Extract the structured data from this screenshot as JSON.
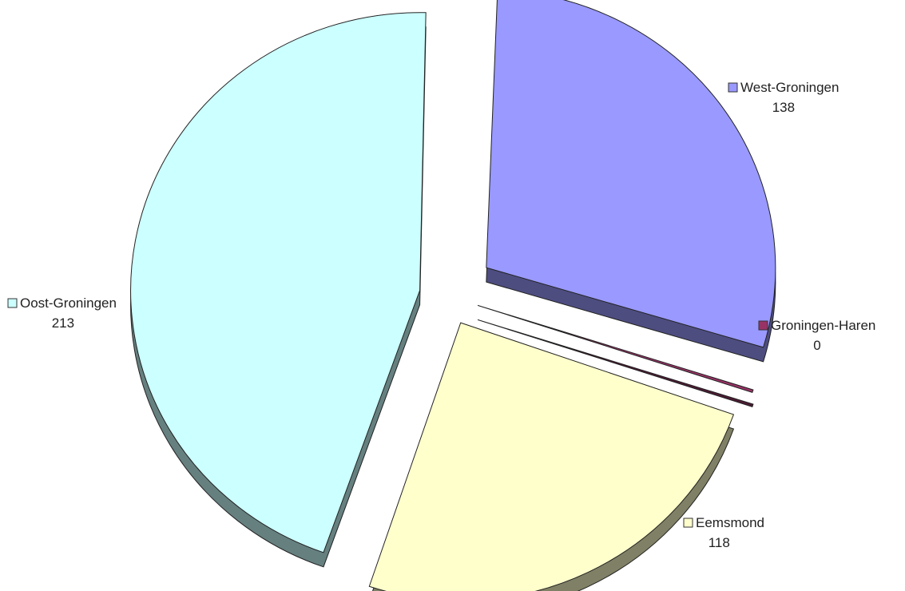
{
  "chart_data": {
    "type": "pie",
    "title": "",
    "slices": [
      {
        "label": "West-Groningen",
        "value": 138,
        "color": "#9999ff"
      },
      {
        "label": "Groningen-Haren",
        "value": 0,
        "color": "#993366"
      },
      {
        "label": "Eemsmond",
        "value": 118,
        "color": "#ffffcc"
      },
      {
        "label": "Oost-Groningen",
        "value": 213,
        "color": "#ccffff"
      }
    ],
    "legend_style": "labels beside slices",
    "exploded": true,
    "three_d": true
  }
}
